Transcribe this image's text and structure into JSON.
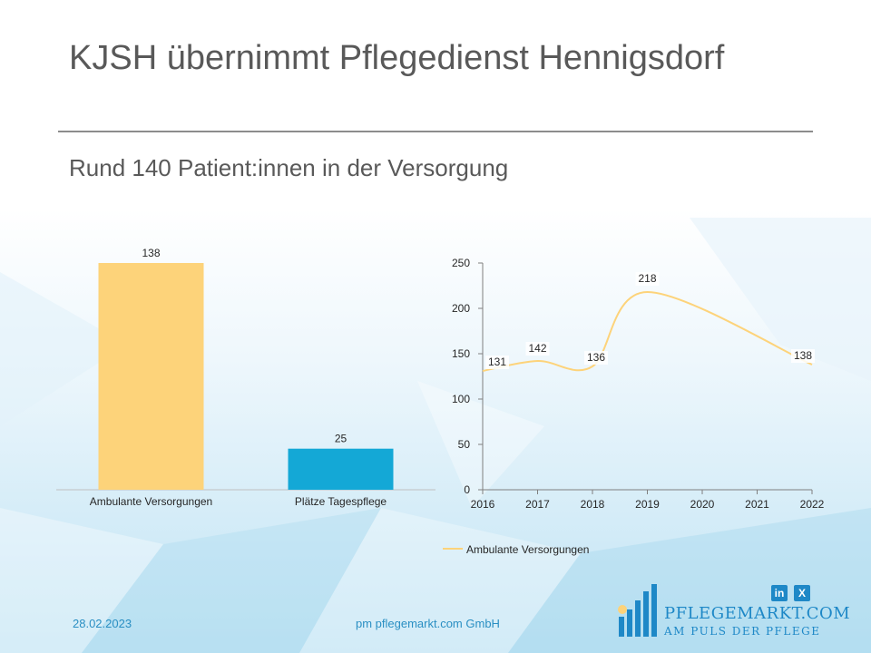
{
  "slide": {
    "title": "KJSH übernimmt Pflegedienst Hennigsdorf",
    "subtitle": "Rund 140 Patient:innen in der Versorgung"
  },
  "footer": {
    "date": "28.02.2023",
    "company": "pm pflegemarkt.com GmbH"
  },
  "logo": {
    "name": "PFLEGEMARKT.COM",
    "tagline": "AM PULS DER PFLEGE",
    "icon": "bar-chart-logo"
  },
  "social": [
    {
      "label": "in",
      "icon": "linkedin-icon"
    },
    {
      "label": "X",
      "icon": "xing-icon"
    }
  ],
  "colors": {
    "bar_orange": "#fdd37a",
    "bar_blue": "#14a8d6",
    "line": "#fdd37a",
    "accent": "#1e88c7"
  },
  "chart_data": [
    {
      "type": "bar",
      "categories": [
        "Ambulante Versorgungen",
        "Plätze Tagespflege"
      ],
      "values": [
        138,
        25
      ],
      "data_labels": [
        "138",
        "25"
      ],
      "ylim": [
        0,
        150
      ],
      "grid": false
    },
    {
      "type": "line",
      "x": [
        "2016",
        "2017",
        "2018",
        "2019",
        "2020",
        "2021",
        "2022"
      ],
      "series": [
        {
          "name": "Ambulante Versorgungen",
          "points": [
            [
              2016,
              131
            ],
            [
              2017,
              142
            ],
            [
              2018,
              136
            ],
            [
              2019,
              218
            ],
            [
              2022,
              138
            ]
          ],
          "labels": [
            "131",
            "142",
            "136",
            "218",
            "138"
          ]
        }
      ],
      "yticks": [
        "0",
        "50",
        "100",
        "150",
        "200",
        "250"
      ],
      "ylim": [
        0,
        250
      ],
      "xlim": [
        2016,
        2022
      ],
      "legend": "bottom",
      "grid": false
    }
  ]
}
